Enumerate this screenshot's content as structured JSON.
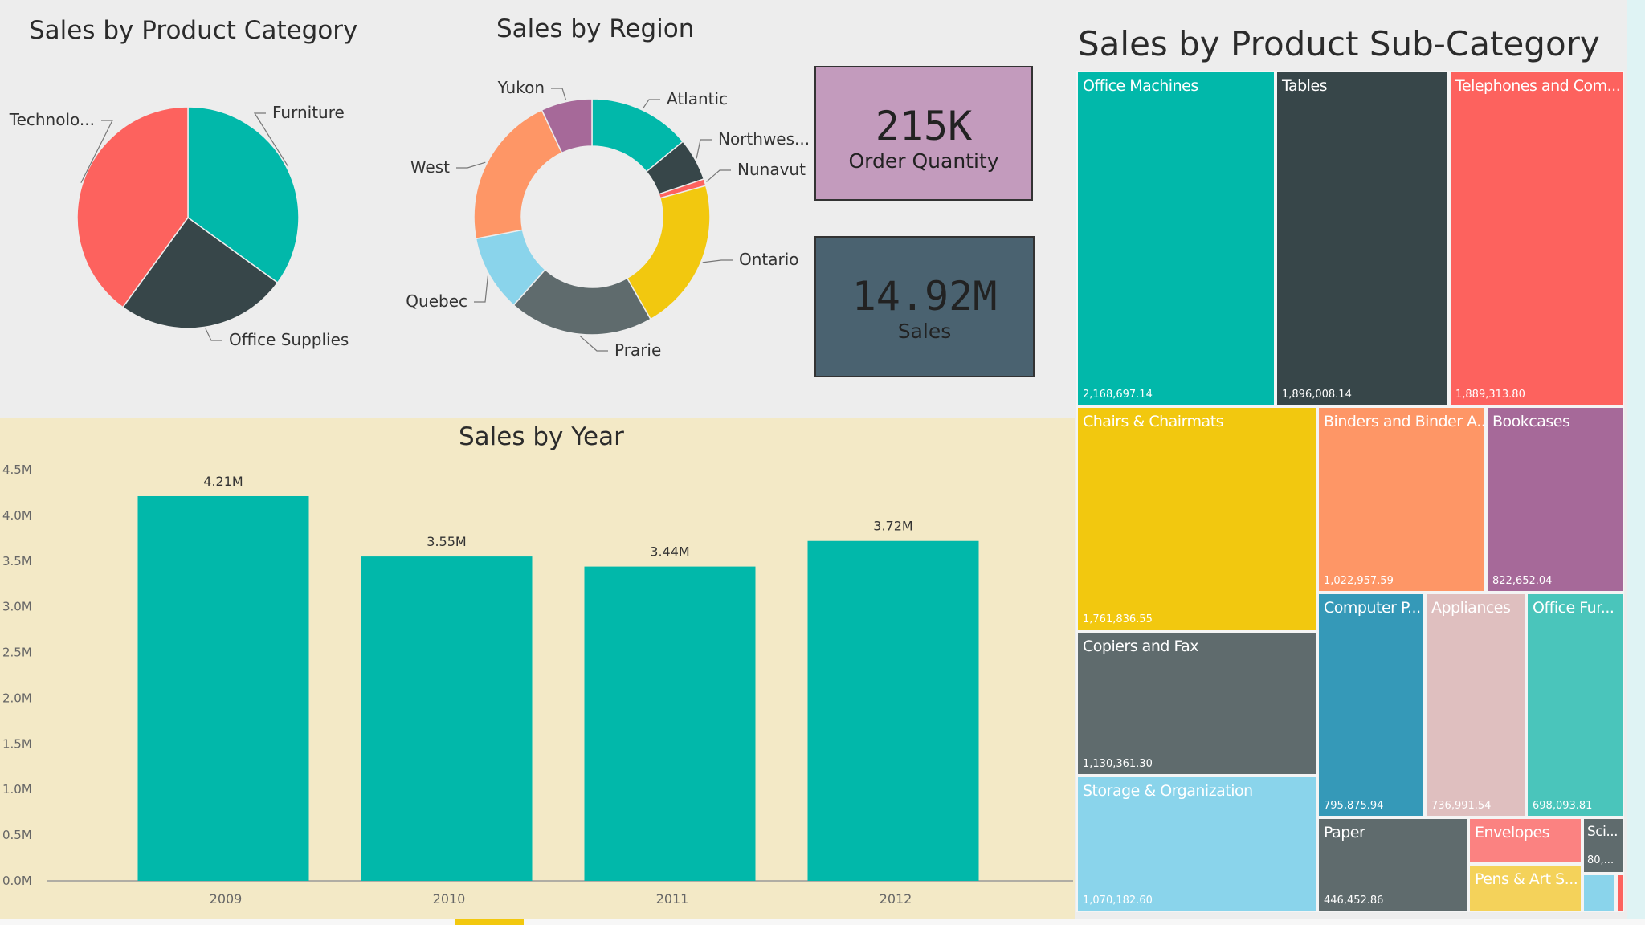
{
  "pie_title": "Sales by Product Category",
  "donut_title": "Sales by Region",
  "bar_title": "Sales by Year",
  "treemap_title": "Sales by Product Sub-Category",
  "cards": [
    {
      "value": "215K",
      "label": "Order Quantity",
      "bg": "#c39bbd"
    },
    {
      "value": "14.92M",
      "label": "Sales",
      "bg": "#4a6270"
    }
  ],
  "chart_data": [
    {
      "type": "pie",
      "title": "Sales by Product Category",
      "slices": [
        {
          "label": "Furniture",
          "value": 35,
          "color": "#01b8aa"
        },
        {
          "label": "Office Supplies",
          "value": 25,
          "color": "#374649"
        },
        {
          "label": "Technolo...",
          "value": 40,
          "color": "#fd625e"
        }
      ]
    },
    {
      "type": "pie",
      "title": "Sales by Region",
      "slices": [
        {
          "label": "Atlantic",
          "value": 12,
          "color": "#01b8aa"
        },
        {
          "label": "Northwes...",
          "value": 5,
          "color": "#374649"
        },
        {
          "label": "Nunavut",
          "value": 0.8,
          "color": "#fd625e"
        },
        {
          "label": "Ontario",
          "value": 18,
          "color": "#f2c80f"
        },
        {
          "label": "Prarie",
          "value": 17,
          "color": "#5f6b6d"
        },
        {
          "label": "Quebec",
          "value": 9,
          "color": "#8ad4eb"
        },
        {
          "label": "West",
          "value": 18,
          "color": "#fe9666"
        },
        {
          "label": "Yukon",
          "value": 6,
          "color": "#a66999"
        }
      ]
    },
    {
      "type": "bar",
      "title": "Sales by Year",
      "categories": [
        "2009",
        "2010",
        "2011",
        "2012"
      ],
      "values": [
        4.21,
        3.55,
        3.44,
        3.72
      ],
      "data_labels": [
        "4.21M",
        "3.55M",
        "3.44M",
        "3.72M"
      ],
      "ylim": [
        0,
        4.5
      ],
      "yticks": [
        "0.0M",
        "0.5M",
        "1.0M",
        "1.5M",
        "2.0M",
        "2.5M",
        "3.0M",
        "3.5M",
        "4.0M",
        "4.5M"
      ],
      "color": "#01b8aa"
    },
    {
      "type": "treemap",
      "title": "Sales by Product Sub-Category",
      "items": [
        {
          "name": "Office Machines",
          "value": "2,168,697.14",
          "color": "#01b8aa"
        },
        {
          "name": "Tables",
          "value": "1,896,008.14",
          "color": "#374649"
        },
        {
          "name": "Telephones and Com...",
          "value": "1,889,313.80",
          "color": "#fd625e"
        },
        {
          "name": "Chairs & Chairmats",
          "value": "1,761,836.55",
          "color": "#f2c80f"
        },
        {
          "name": "Binders and Binder A...",
          "value": "1,022,957.59",
          "color": "#fe9666"
        },
        {
          "name": "Bookcases",
          "value": "822,652.04",
          "color": "#a66999"
        },
        {
          "name": "Copiers and Fax",
          "value": "1,130,361.30",
          "color": "#5f6b6d"
        },
        {
          "name": "Computer P...",
          "value": "795,875.94",
          "color": "#3599b8"
        },
        {
          "name": "Appliances",
          "value": "736,991.54",
          "color": "#dfbfbf"
        },
        {
          "name": "Office Fur...",
          "value": "698,093.81",
          "color": "#4ac5bb"
        },
        {
          "name": "Storage & Organization",
          "value": "1,070,182.60",
          "color": "#8ad4eb"
        },
        {
          "name": "Paper",
          "value": "446,452.86",
          "color": "#5f6b6d"
        },
        {
          "name": "Envelopes",
          "value": "",
          "color": "#fb8281"
        },
        {
          "name": "Sci...",
          "value": "80,...",
          "color": "#5f6b6d"
        },
        {
          "name": "Pens & Art S...",
          "value": "",
          "color": "#f4d25a"
        },
        {
          "name": "",
          "value": "",
          "color": "#8ad4eb"
        },
        {
          "name": "",
          "value": "",
          "color": "#fd625e"
        }
      ]
    }
  ]
}
